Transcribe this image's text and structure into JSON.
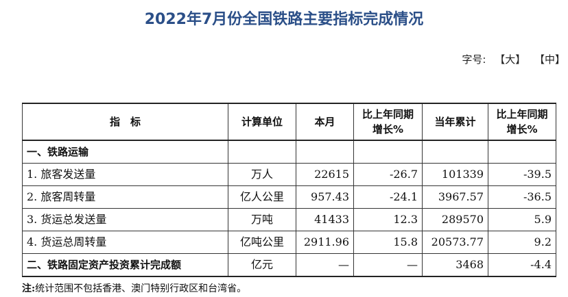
{
  "title": "2022年7月份全国铁路主要指标完成情况",
  "font_size": {
    "label": "字号:",
    "large": "【大】",
    "medium": "【中】"
  },
  "table": {
    "headers": {
      "indicator": "指　标",
      "unit": "计算单位",
      "month": "本月",
      "yoy_month": "比上年同期增长%",
      "cumulative": "当年累计",
      "yoy_cumulative": "比上年同期增长%"
    },
    "section1": {
      "label": "一、铁路运输",
      "rows": [
        {
          "name": "1. 旅客发送量",
          "unit": "万人",
          "month": "22615",
          "yoy_month": "-26.7",
          "cumulative": "101339",
          "yoy_cumulative": "-39.5"
        },
        {
          "name": "2. 旅客周转量",
          "unit": "亿人公里",
          "month": "957.43",
          "yoy_month": "-24.1",
          "cumulative": "3967.57",
          "yoy_cumulative": "-36.5"
        },
        {
          "name": "3. 货运总发送量",
          "unit": "万吨",
          "month": "41433",
          "yoy_month": "12.3",
          "cumulative": "289570",
          "yoy_cumulative": "5.9"
        },
        {
          "name": "4. 货运总周转量",
          "unit": "亿吨公里",
          "month": "2911.96",
          "yoy_month": "15.8",
          "cumulative": "20573.77",
          "yoy_cumulative": "9.2"
        }
      ]
    },
    "section2": {
      "label": "二、铁路固定资产投资累计完成额",
      "unit": "亿元",
      "month": "—",
      "yoy_month": "—",
      "cumulative": "3468",
      "yoy_cumulative": "-4.4"
    }
  },
  "note": {
    "label": "注:",
    "text": "统计范围不包括香港、澳门特别行政区和台湾省。"
  }
}
